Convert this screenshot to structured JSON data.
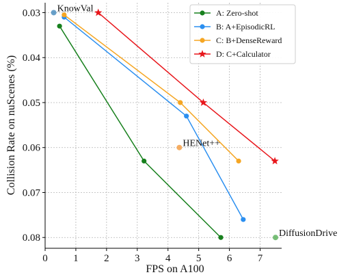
{
  "chart_data": {
    "type": "line",
    "xlabel": "FPS on A100",
    "ylabel": "Collision Rate on nuScenes (%)",
    "xlim": [
      0,
      7.7
    ],
    "ylim": [
      0.0278,
      0.0824
    ],
    "y_inverted": true,
    "x_ticks": [
      0,
      1,
      2,
      3,
      4,
      5,
      6,
      7
    ],
    "y_ticks": [
      0.03,
      0.04,
      0.05,
      0.06,
      0.07,
      0.08
    ],
    "y_tick_labels": [
      "0.03",
      "0.04",
      "0.05",
      "0.06",
      "0.07",
      "0.08"
    ],
    "grid": true,
    "legend_position": "top-right",
    "series": [
      {
        "name": "A: Zero-shot",
        "color": "#17801d",
        "marker": "circle",
        "points": [
          [
            0.47,
            0.033
          ],
          [
            3.22,
            0.063
          ],
          [
            5.72,
            0.08
          ]
        ]
      },
      {
        "name": "B: A+EpisodicRL",
        "color": "#2b8ff0",
        "marker": "circle",
        "points": [
          [
            0.62,
            0.031
          ],
          [
            4.6,
            0.053
          ],
          [
            6.45,
            0.076
          ]
        ]
      },
      {
        "name": "C: B+DenseReward",
        "color": "#f5a623",
        "marker": "circle",
        "points": [
          [
            0.62,
            0.0305
          ],
          [
            4.4,
            0.05
          ],
          [
            6.3,
            0.063
          ]
        ]
      },
      {
        "name": "D: C+Calculator",
        "color": "#e8161b",
        "marker": "star",
        "points": [
          [
            1.73,
            0.03
          ],
          [
            5.15,
            0.05
          ],
          [
            7.48,
            0.063
          ]
        ]
      }
    ],
    "annotations": [
      {
        "label": "KnowVal",
        "x": 0.28,
        "y": 0.03,
        "color": "#4f8fbf"
      },
      {
        "label": "HENet++",
        "x": 4.37,
        "y": 0.06,
        "color": "#f5a048"
      },
      {
        "label": "DiffusionDrive",
        "x": 7.5,
        "y": 0.08,
        "color": "#5fb35f"
      }
    ]
  }
}
